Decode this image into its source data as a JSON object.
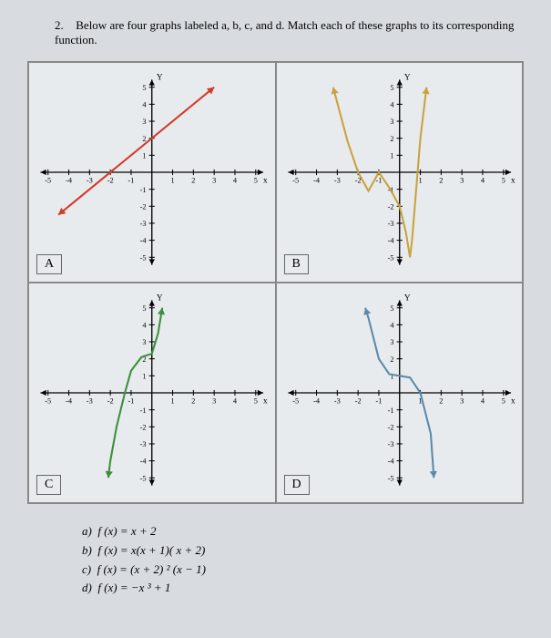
{
  "question": {
    "number": "2.",
    "text": "Below are four graphs labeled a, b, c, and d. Match each of these graphs to its corresponding function."
  },
  "axis": {
    "xmin": -5,
    "xmax": 5,
    "ymin": -5,
    "ymax": 5,
    "tick_step": 1,
    "axis_color": "#000000",
    "tick_fontsize": 8,
    "label_fontsize": 9
  },
  "graphs": [
    {
      "label": "A",
      "color": "#d43a2a",
      "stroke_width": 2,
      "arrows": true,
      "type": "line",
      "points": [
        [
          -4.5,
          -2.5
        ],
        [
          3,
          5
        ]
      ]
    },
    {
      "label": "B",
      "color": "#c9a23f",
      "stroke_width": 2,
      "arrows": true,
      "type": "polyline",
      "points": [
        [
          -3.2,
          5
        ],
        [
          -2.5,
          1.8
        ],
        [
          -2,
          0
        ],
        [
          -1.5,
          -1.1
        ],
        [
          -1,
          0
        ],
        [
          -0.5,
          -0.9
        ],
        [
          0,
          -2
        ],
        [
          0.3,
          -3.5
        ],
        [
          0.5,
          -5
        ],
        [
          0.5,
          -5
        ],
        [
          0.6,
          -4
        ],
        [
          0.8,
          -1
        ],
        [
          1,
          2
        ],
        [
          1.3,
          5
        ]
      ]
    },
    {
      "label": "C",
      "color": "#3c8f3c",
      "stroke_width": 2,
      "arrows": true,
      "type": "polyline",
      "points": [
        [
          -2.1,
          -5
        ],
        [
          -2,
          -4
        ],
        [
          -1.7,
          -2
        ],
        [
          -1.3,
          0
        ],
        [
          -1,
          1.3
        ],
        [
          -0.5,
          2.1
        ],
        [
          0,
          2.3
        ],
        [
          0.3,
          3.5
        ],
        [
          0.5,
          5
        ]
      ]
    },
    {
      "label": "D",
      "color": "#5a8aa8",
      "stroke_width": 2,
      "arrows": true,
      "type": "polyline",
      "points": [
        [
          -1.65,
          5
        ],
        [
          -1.5,
          4.4
        ],
        [
          -1,
          2
        ],
        [
          -0.5,
          1.1
        ],
        [
          0,
          1
        ],
        [
          0.5,
          0.9
        ],
        [
          1,
          0
        ],
        [
          1.5,
          -2.4
        ],
        [
          1.65,
          -5
        ]
      ]
    }
  ],
  "answers": [
    {
      "letter": "a)",
      "fn": "f (x) = x + 2"
    },
    {
      "letter": "b)",
      "fn": "f (x) = x(x + 1)( x + 2)"
    },
    {
      "letter": "c)",
      "fn": "f (x) = (x + 2) ² (x − 1)"
    },
    {
      "letter": "d)",
      "fn": "f (x) = −x ³ + 1"
    }
  ]
}
